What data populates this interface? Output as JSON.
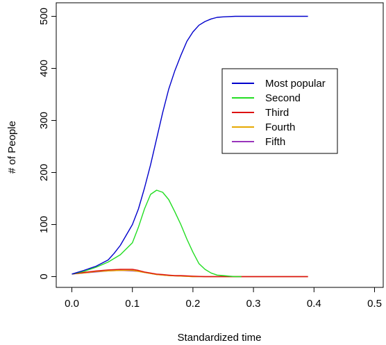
{
  "chart_data": {
    "type": "line",
    "title": "",
    "xlabel": "Standardized time",
    "ylabel": "# of People",
    "xlim": [
      0,
      0.52
    ],
    "ylim": [
      -10,
      510
    ],
    "xticks": [
      0.0,
      0.1,
      0.2,
      0.3,
      0.4,
      0.5
    ],
    "xtick_labels": [
      "0.0",
      "0.1",
      "0.2",
      "0.3",
      "0.4",
      "0.5"
    ],
    "yticks": [
      0,
      100,
      200,
      300,
      400,
      500
    ],
    "ytick_labels": [
      "0",
      "100",
      "200",
      "300",
      "400",
      "500"
    ],
    "grid": false,
    "legend_position": "center-right",
    "series": [
      {
        "name": "Most popular",
        "color": "#0000cc",
        "x": [
          0.0,
          0.02,
          0.04,
          0.06,
          0.07,
          0.08,
          0.09,
          0.1,
          0.11,
          0.12,
          0.13,
          0.14,
          0.15,
          0.16,
          0.17,
          0.18,
          0.19,
          0.2,
          0.21,
          0.22,
          0.23,
          0.24,
          0.25,
          0.27,
          0.3,
          0.35,
          0.39
        ],
        "y": [
          5,
          12,
          20,
          32,
          45,
          60,
          80,
          100,
          130,
          170,
          215,
          265,
          315,
          360,
          395,
          425,
          452,
          470,
          483,
          490,
          495,
          498,
          499,
          500,
          500,
          500,
          500
        ]
      },
      {
        "name": "Second",
        "color": "#22dd22",
        "x": [
          0.0,
          0.02,
          0.04,
          0.06,
          0.08,
          0.1,
          0.11,
          0.12,
          0.13,
          0.14,
          0.15,
          0.16,
          0.17,
          0.18,
          0.19,
          0.2,
          0.21,
          0.22,
          0.23,
          0.24,
          0.25,
          0.26,
          0.27,
          0.28
        ],
        "y": [
          5,
          10,
          18,
          28,
          42,
          65,
          95,
          130,
          158,
          166,
          162,
          148,
          125,
          100,
          72,
          47,
          25,
          14,
          7,
          3,
          2,
          1,
          0,
          0
        ]
      },
      {
        "name": "Third",
        "color": "#dd1111",
        "x": [
          0.0,
          0.02,
          0.04,
          0.06,
          0.08,
          0.1,
          0.11,
          0.12,
          0.13,
          0.14,
          0.15,
          0.16,
          0.17,
          0.18,
          0.2,
          0.22,
          0.25,
          0.3,
          0.35,
          0.39
        ],
        "y": [
          5,
          8,
          11,
          13,
          14,
          14,
          12,
          9,
          7,
          5,
          4,
          3,
          2,
          2,
          1,
          0,
          0,
          0,
          0,
          0
        ]
      },
      {
        "name": "Fourth",
        "color": "#e6a800",
        "x": [
          0.0,
          0.02,
          0.04,
          0.06,
          0.08,
          0.1,
          0.11,
          0.12,
          0.13,
          0.14,
          0.15,
          0.16,
          0.18,
          0.2,
          0.25,
          0.3,
          0.35,
          0.39
        ],
        "y": [
          5,
          7,
          10,
          11,
          12,
          12,
          10,
          8,
          6,
          4,
          3,
          2,
          1,
          0,
          0,
          0,
          0,
          0
        ]
      },
      {
        "name": "Fifth",
        "color": "#9933bb",
        "x": [
          0.0,
          0.02,
          0.04,
          0.06,
          0.08,
          0.1,
          0.11,
          0.12,
          0.13,
          0.14,
          0.15,
          0.16,
          0.18,
          0.2,
          0.25,
          0.3,
          0.35,
          0.39
        ],
        "y": [
          5,
          7,
          9,
          11,
          12,
          11,
          10,
          8,
          6,
          4,
          3,
          2,
          1,
          0,
          0,
          0,
          0,
          0
        ]
      }
    ]
  }
}
